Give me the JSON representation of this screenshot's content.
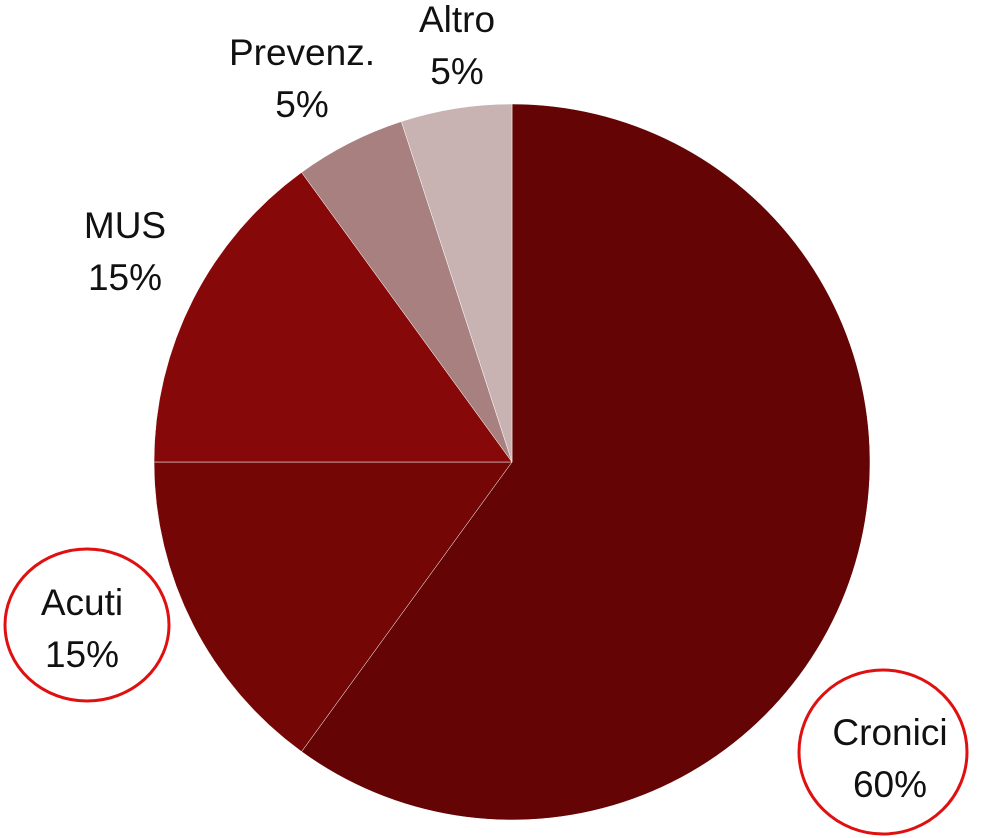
{
  "chart_data": {
    "type": "pie",
    "categories": [
      "Cronici",
      "Acuti",
      "MUS",
      "Prevenz.",
      "Altro"
    ],
    "values": [
      60,
      15,
      15,
      5,
      5
    ],
    "value_labels": [
      "60%",
      "15%",
      "15%",
      "5%",
      "5%"
    ],
    "colors": [
      "#640404",
      "#740606",
      "#870808",
      "#a88080",
      "#c8b2b2"
    ]
  }
}
